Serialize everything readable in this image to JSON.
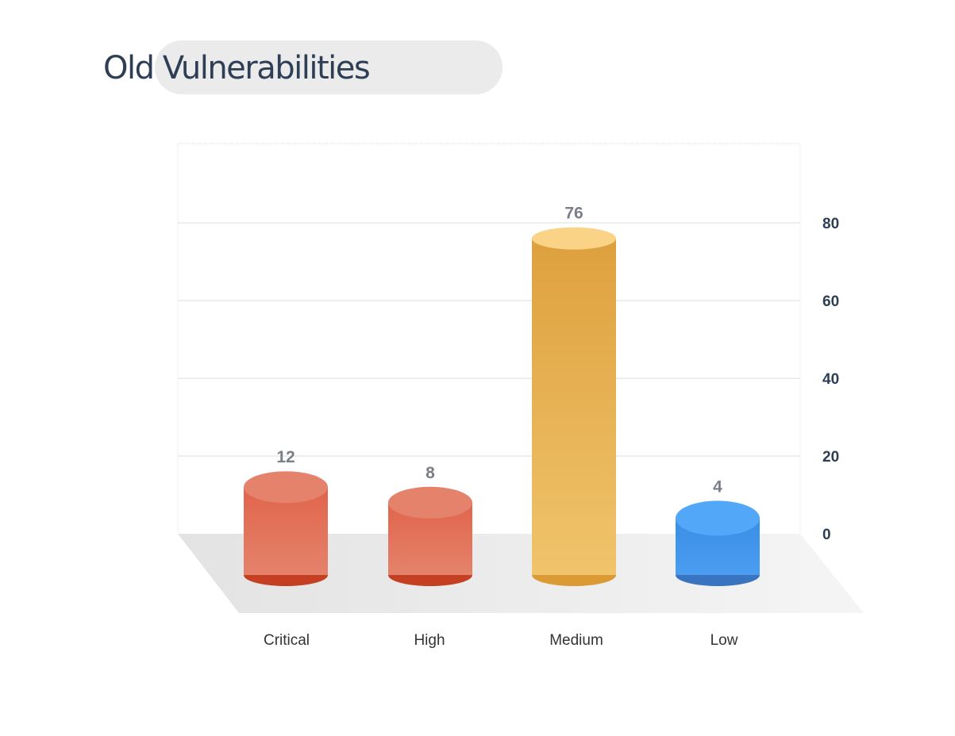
{
  "chart_data": {
    "type": "bar",
    "title": "Old Vulnerabilities",
    "categories": [
      "Critical",
      "High",
      "Medium",
      "Low"
    ],
    "values": [
      12,
      8,
      76,
      4
    ],
    "yticks": [
      0,
      20,
      40,
      60,
      80
    ],
    "ylim": [
      0,
      100
    ],
    "grid": true,
    "yaxis_position": "right",
    "colors": {
      "Critical": {
        "top": "#e5826c",
        "body_top": "#e0654b",
        "body_bottom": "#e5826c",
        "base": "#c53f22"
      },
      "High": {
        "top": "#e5826c",
        "body_top": "#e0654b",
        "body_bottom": "#e5826c",
        "base": "#c53f22"
      },
      "Medium": {
        "top": "#fbd386",
        "body_top": "#dea03e",
        "body_bottom": "#f0c46b",
        "base": "#dc9a35"
      },
      "Low": {
        "top": "#52a7f8",
        "body_top": "#3a8ee6",
        "body_bottom": "#4a9df0",
        "base": "#3874c0"
      }
    }
  }
}
